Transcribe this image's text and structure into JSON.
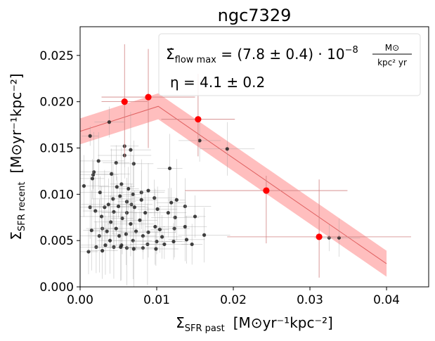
{
  "chart_data": {
    "type": "scatter",
    "title": "ngc7329",
    "xlabel_main": "Σ",
    "xlabel_sub": "SFR past",
    "xlabel_units": "[M⊙yr⁻¹kpc⁻²]",
    "ylabel_main": "Σ",
    "ylabel_sub": "SFR recent",
    "ylabel_units": "[M⊙yr⁻¹kpc⁻²]",
    "xlim": [
      0.0,
      0.0455
    ],
    "ylim": [
      0.0,
      0.0281
    ],
    "x_ticks": [
      0.0,
      0.01,
      0.02,
      0.03,
      0.04
    ],
    "x_tick_labels": [
      "0.00",
      "0.01",
      "0.02",
      "0.03",
      "0.04"
    ],
    "y_ticks": [
      0.0,
      0.005,
      0.01,
      0.015,
      0.02,
      0.025
    ],
    "y_tick_labels": [
      "0.000",
      "0.005",
      "0.010",
      "0.015",
      "0.020",
      "0.025"
    ],
    "legend_line1_lhs": "Σ̇",
    "legend_line1_sub": "flow max",
    "legend_line1_rhs": " = (7.8 ± 0.4) · 10",
    "legend_line1_exp": "−8",
    "legend_line1_frac_num": "M⊙",
    "legend_line1_frac_den": "kpc² yr",
    "legend_line2": "η = 4.1 ± 0.2",
    "colors": {
      "model_band": "#ffb3b3",
      "model_line": "#e06060",
      "binned": "#ff0000",
      "points": "#222222",
      "point_errors": "#9a9a9a",
      "binned_errors": "#d08080"
    },
    "model": {
      "x": [
        0.0,
        0.0102,
        0.04
      ],
      "y": [
        0.0168,
        0.0195,
        0.0025
      ],
      "band_halfwidth": 0.0014
    },
    "binned": [
      {
        "x": 0.0058,
        "y": 0.02,
        "xerr": 0.003,
        "yerr_up": 0.0062,
        "yerr_down": 0.006
      },
      {
        "x": 0.0089,
        "y": 0.0205,
        "xerr": 0.0061,
        "yerr_up": 0.0052,
        "yerr_down": 0.0055
      },
      {
        "x": 0.0154,
        "y": 0.0181,
        "xerr": 0.0048,
        "yerr_up": 0.0049,
        "yerr_down": 0.004
      },
      {
        "x": 0.0243,
        "y": 0.0104,
        "xerr": 0.0106,
        "yerr_up": 0.0016,
        "yerr_down": 0.0057
      },
      {
        "x": 0.0312,
        "y": 0.0054,
        "xerr": 0.012,
        "yerr_up": 0.0062,
        "yerr_down": 0.0044
      }
    ],
    "points": [
      {
        "x": 0.0013,
        "y": 0.0163
      },
      {
        "x": 0.0038,
        "y": 0.0178
      },
      {
        "x": 0.0156,
        "y": 0.0158
      },
      {
        "x": 0.0192,
        "y": 0.0149
      },
      {
        "x": 0.0058,
        "y": 0.0152
      },
      {
        "x": 0.0066,
        "y": 0.0148
      },
      {
        "x": 0.0058,
        "y": 0.0142
      },
      {
        "x": 0.0047,
        "y": 0.0134
      },
      {
        "x": 0.007,
        "y": 0.0133
      },
      {
        "x": 0.0024,
        "y": 0.0136
      },
      {
        "x": 0.0117,
        "y": 0.0128
      },
      {
        "x": 0.0018,
        "y": 0.0124
      },
      {
        "x": 0.0017,
        "y": 0.0121
      },
      {
        "x": 0.0016,
        "y": 0.0117
      },
      {
        "x": 0.0041,
        "y": 0.0122
      },
      {
        "x": 0.0005,
        "y": 0.0109
      },
      {
        "x": 0.0054,
        "y": 0.0111
      },
      {
        "x": 0.0048,
        "y": 0.0108
      },
      {
        "x": 0.0026,
        "y": 0.0102
      },
      {
        "x": 0.0063,
        "y": 0.0106
      },
      {
        "x": 0.0089,
        "y": 0.0104
      },
      {
        "x": 0.008,
        "y": 0.0102
      },
      {
        "x": 0.0069,
        "y": 0.01
      },
      {
        "x": 0.0052,
        "y": 0.0098
      },
      {
        "x": 0.0097,
        "y": 0.0096
      },
      {
        "x": 0.0061,
        "y": 0.0092
      },
      {
        "x": 0.008,
        "y": 0.0094
      },
      {
        "x": 0.0043,
        "y": 0.0095
      },
      {
        "x": 0.0126,
        "y": 0.0094
      },
      {
        "x": 0.0119,
        "y": 0.0091
      },
      {
        "x": 0.0067,
        "y": 0.0089
      },
      {
        "x": 0.0037,
        "y": 0.0089
      },
      {
        "x": 0.0013,
        "y": 0.0086
      },
      {
        "x": 0.0032,
        "y": 0.0086
      },
      {
        "x": 0.005,
        "y": 0.0087
      },
      {
        "x": 0.0071,
        "y": 0.0086
      },
      {
        "x": 0.0101,
        "y": 0.0084
      },
      {
        "x": 0.0137,
        "y": 0.0087
      },
      {
        "x": 0.002,
        "y": 0.0082
      },
      {
        "x": 0.0044,
        "y": 0.0081
      },
      {
        "x": 0.0061,
        "y": 0.008
      },
      {
        "x": 0.0085,
        "y": 0.008
      },
      {
        "x": 0.0115,
        "y": 0.008
      },
      {
        "x": 0.0028,
        "y": 0.0076
      },
      {
        "x": 0.0055,
        "y": 0.0074
      },
      {
        "x": 0.0078,
        "y": 0.0072
      },
      {
        "x": 0.0124,
        "y": 0.0075
      },
      {
        "x": 0.015,
        "y": 0.0076
      },
      {
        "x": 0.004,
        "y": 0.007
      },
      {
        "x": 0.0066,
        "y": 0.0068
      },
      {
        "x": 0.0098,
        "y": 0.0065
      },
      {
        "x": 0.0029,
        "y": 0.0063
      },
      {
        "x": 0.0047,
        "y": 0.0063
      },
      {
        "x": 0.0104,
        "y": 0.0062
      },
      {
        "x": 0.0123,
        "y": 0.0063
      },
      {
        "x": 0.0137,
        "y": 0.0065
      },
      {
        "x": 0.0015,
        "y": 0.0061
      },
      {
        "x": 0.0035,
        "y": 0.006
      },
      {
        "x": 0.0073,
        "y": 0.006
      },
      {
        "x": 0.0089,
        "y": 0.0059
      },
      {
        "x": 0.006,
        "y": 0.0057
      },
      {
        "x": 0.0025,
        "y": 0.0055
      },
      {
        "x": 0.0051,
        "y": 0.0055
      },
      {
        "x": 0.0082,
        "y": 0.0055
      },
      {
        "x": 0.0107,
        "y": 0.0054
      },
      {
        "x": 0.0162,
        "y": 0.0056
      },
      {
        "x": 0.0039,
        "y": 0.005
      },
      {
        "x": 0.0069,
        "y": 0.005
      },
      {
        "x": 0.01,
        "y": 0.0049
      },
      {
        "x": 0.0122,
        "y": 0.0049
      },
      {
        "x": 0.0139,
        "y": 0.0051
      },
      {
        "x": 0.0033,
        "y": 0.0045
      },
      {
        "x": 0.0054,
        "y": 0.0045
      },
      {
        "x": 0.0088,
        "y": 0.0046
      },
      {
        "x": 0.011,
        "y": 0.0046
      },
      {
        "x": 0.0146,
        "y": 0.0046
      },
      {
        "x": 0.0021,
        "y": 0.0043
      },
      {
        "x": 0.0044,
        "y": 0.0043
      },
      {
        "x": 0.0061,
        "y": 0.0042
      },
      {
        "x": 0.0082,
        "y": 0.0042
      },
      {
        "x": 0.0099,
        "y": 0.0041
      },
      {
        "x": 0.0011,
        "y": 0.0038
      },
      {
        "x": 0.0029,
        "y": 0.0039
      },
      {
        "x": 0.0053,
        "y": 0.0043
      },
      {
        "x": 0.007,
        "y": 0.0041
      },
      {
        "x": 0.0325,
        "y": 0.0053
      },
      {
        "x": 0.0338,
        "y": 0.0053
      }
    ]
  }
}
